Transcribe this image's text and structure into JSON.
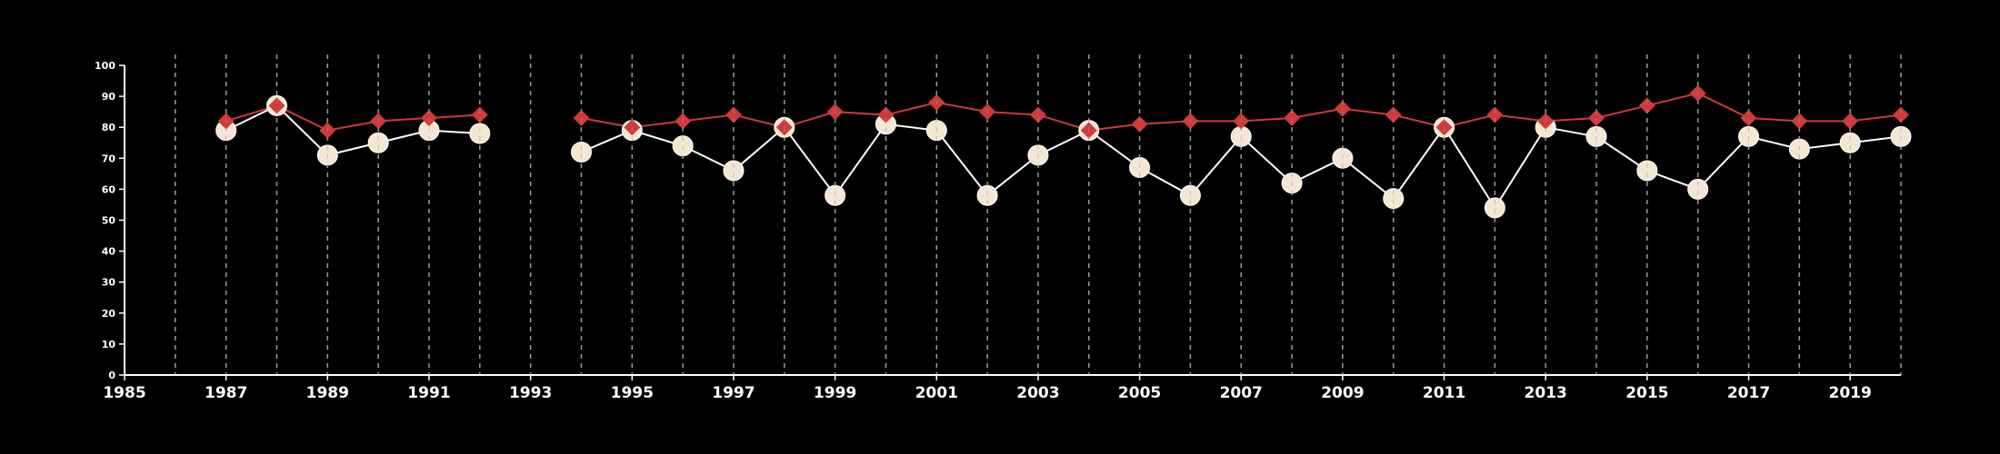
{
  "chart_data": {
    "type": "line",
    "title": "",
    "xlabel": "",
    "ylabel": "",
    "xlim": [
      1985,
      2020
    ],
    "ylim": [
      0,
      100
    ],
    "x_ticks": [
      1985,
      1987,
      1989,
      1991,
      1993,
      1995,
      1997,
      1999,
      2001,
      2003,
      2005,
      2007,
      2009,
      2011,
      2013,
      2015,
      2017,
      2019
    ],
    "y_ticks": [
      0,
      10,
      20,
      30,
      40,
      50,
      60,
      70,
      80,
      90,
      100
    ],
    "vertical_gridlines_years": [
      1986,
      1987,
      1988,
      1989,
      1990,
      1991,
      1992,
      1993,
      1994,
      1995,
      1996,
      1997,
      1998,
      1999,
      2000,
      2001,
      2002,
      2003,
      2004,
      2005,
      2006,
      2007,
      2008,
      2009,
      2010,
      2011,
      2012,
      2013,
      2014,
      2015,
      2016,
      2017,
      2018,
      2019,
      2020
    ],
    "grid": "vertical dashed",
    "legend": "none",
    "colors": {
      "background": "#000000",
      "axis": "#ffffff",
      "grid": "#9a9a9a",
      "red_series": "#cf3a3a",
      "cream_series": "#f5e6d3",
      "cream_line": "#ffffff"
    },
    "series": [
      {
        "marker": "diamond",
        "color": "#cf3a3a",
        "x": [
          1987,
          1988,
          1989,
          1990,
          1991,
          1992,
          1994,
          1995,
          1996,
          1997,
          1998,
          1999,
          2000,
          2001,
          2002,
          2003,
          2004,
          2005,
          2006,
          2007,
          2008,
          2009,
          2010,
          2011,
          2012,
          2013,
          2014,
          2015,
          2016,
          2017,
          2018,
          2019,
          2020
        ],
        "values": [
          82,
          87,
          79,
          82,
          83,
          84,
          83,
          80,
          82,
          84,
          80,
          85,
          84,
          88,
          85,
          84,
          79,
          81,
          82,
          82,
          83,
          86,
          84,
          80,
          84,
          82,
          83,
          87,
          91,
          83,
          82,
          82,
          84
        ]
      },
      {
        "marker": "circle",
        "color": "#f5e6d3",
        "x": [
          1987,
          1988,
          1989,
          1990,
          1991,
          1992,
          1994,
          1995,
          1996,
          1997,
          1998,
          1999,
          2000,
          2001,
          2002,
          2003,
          2004,
          2005,
          2006,
          2007,
          2008,
          2009,
          2010,
          2011,
          2012,
          2013,
          2014,
          2015,
          2016,
          2017,
          2018,
          2019,
          2020
        ],
        "values": [
          79,
          87,
          71,
          75,
          79,
          78,
          72,
          79,
          74,
          66,
          80,
          58,
          81,
          79,
          58,
          71,
          79,
          67,
          58,
          77,
          62,
          70,
          57,
          80,
          54,
          80,
          77,
          66,
          60,
          77,
          73,
          75,
          77
        ]
      }
    ]
  }
}
